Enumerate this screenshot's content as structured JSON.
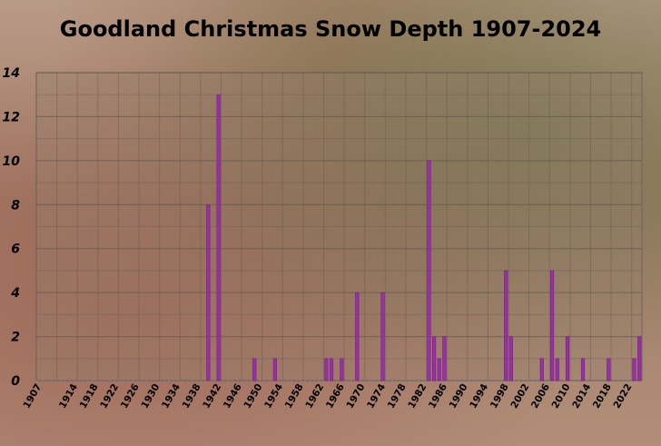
{
  "chart_data": {
    "type": "bar",
    "title": "Goodland Christmas Snow Depth 1907-2024",
    "xlabel": "",
    "ylabel": "",
    "ylim": [
      0,
      14
    ],
    "yticks": [
      0,
      2,
      4,
      6,
      8,
      10,
      12,
      14
    ],
    "x_start": 1907,
    "x_end": 2024,
    "x_tick_labels": [
      "1907",
      "1914",
      "1918",
      "1922",
      "1926",
      "1930",
      "1934",
      "1938",
      "1942",
      "1946",
      "1950",
      "1954",
      "1958",
      "1962",
      "1966",
      "1970",
      "1974",
      "1978",
      "1982",
      "1986",
      "1990",
      "1994",
      "1998",
      "2002",
      "2006",
      "2010",
      "2014",
      "2018",
      "2022"
    ],
    "grid": true,
    "legend": "none",
    "bar_color": "#9b2fa8",
    "bars": [
      {
        "year": 1940,
        "value": 8
      },
      {
        "year": 1942,
        "value": 13
      },
      {
        "year": 1949,
        "value": 1
      },
      {
        "year": 1953,
        "value": 1
      },
      {
        "year": 1963,
        "value": 1
      },
      {
        "year": 1964,
        "value": 1
      },
      {
        "year": 1966,
        "value": 1
      },
      {
        "year": 1969,
        "value": 4
      },
      {
        "year": 1974,
        "value": 4
      },
      {
        "year": 1983,
        "value": 10
      },
      {
        "year": 1984,
        "value": 2
      },
      {
        "year": 1985,
        "value": 1
      },
      {
        "year": 1986,
        "value": 2
      },
      {
        "year": 1998,
        "value": 5
      },
      {
        "year": 1999,
        "value": 2
      },
      {
        "year": 2005,
        "value": 1
      },
      {
        "year": 2007,
        "value": 5
      },
      {
        "year": 2008,
        "value": 1
      },
      {
        "year": 2010,
        "value": 2
      },
      {
        "year": 2013,
        "value": 1
      },
      {
        "year": 2018,
        "value": 1
      },
      {
        "year": 2023,
        "value": 1
      },
      {
        "year": 2024,
        "value": 2
      }
    ]
  }
}
